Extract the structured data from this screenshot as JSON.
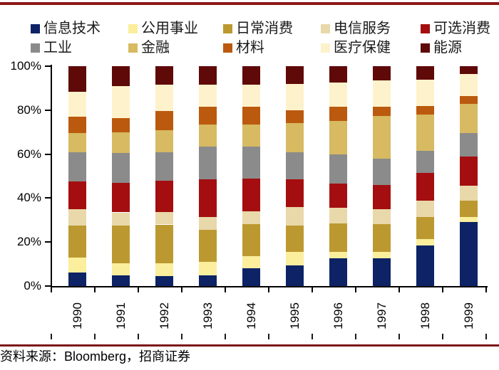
{
  "top_rule_color": "#8e1717",
  "bottom_rule_color": "#7c1416",
  "source_line": "资料来源：Bloomberg，招商证券",
  "chart_data": {
    "type": "bar",
    "variant": "100-percent-stacked-column",
    "title": "",
    "xlabel": "",
    "ylabel": "",
    "ylim": [
      0,
      100
    ],
    "y_tick_step": 20,
    "y_tick_labels": [
      "0%",
      "20%",
      "40%",
      "60%",
      "80%",
      "100%"
    ],
    "grid": false,
    "legend_position": "top",
    "legend_rows": 2,
    "unit": "%",
    "categories": [
      "1990",
      "1991",
      "1992",
      "1993",
      "1994",
      "1995",
      "1996",
      "1997",
      "1998",
      "1999"
    ],
    "stack_order": "first-series-at-bottom",
    "series": [
      {
        "name": "信息技术",
        "color": "#0d2366",
        "values": [
          6,
          5,
          4.5,
          5,
          8,
          9.5,
          12.5,
          12.5,
          18.5,
          29
        ]
      },
      {
        "name": "公用事业",
        "color": "#fbee9d",
        "values": [
          7,
          5.5,
          6,
          6,
          5.5,
          6,
          3,
          3,
          3,
          2.5
        ]
      },
      {
        "name": "日常消费",
        "color": "#bc9930",
        "values": [
          14.5,
          17,
          17.5,
          14.5,
          14.5,
          12,
          13,
          12.5,
          10,
          7.5
        ]
      },
      {
        "name": "电信服务",
        "color": "#e8d8aa",
        "values": [
          7.5,
          6,
          5.5,
          6,
          6,
          8.5,
          7,
          7,
          7.5,
          6.5
        ]
      },
      {
        "name": "可选消费",
        "color": "#a40e10",
        "values": [
          12.5,
          13.5,
          14.5,
          17,
          15,
          12.5,
          11,
          11,
          12.5,
          13.5
        ]
      },
      {
        "name": "工业",
        "color": "#8b8b8b",
        "values": [
          13.5,
          13.5,
          13,
          15,
          14.5,
          12.5,
          13.5,
          12,
          10,
          10.5
        ]
      },
      {
        "name": "金融",
        "color": "#d7ba62",
        "values": [
          8.5,
          9.5,
          10,
          10,
          10,
          13,
          15,
          19.5,
          16.5,
          13.5
        ]
      },
      {
        "name": "材料",
        "color": "#bb5a0e",
        "values": [
          7.5,
          6.5,
          8.5,
          8,
          8,
          6,
          6.5,
          4,
          4,
          3.5
        ]
      },
      {
        "name": "医疗保健",
        "color": "#fdf2cb",
        "values": [
          11.5,
          14.5,
          12,
          10,
          10,
          12,
          11,
          12,
          12,
          10
        ]
      },
      {
        "name": "能源",
        "color": "#5f0909",
        "values": [
          11.5,
          9,
          8.5,
          8.5,
          8.5,
          8,
          7.5,
          6.5,
          6,
          3.5
        ]
      }
    ]
  }
}
